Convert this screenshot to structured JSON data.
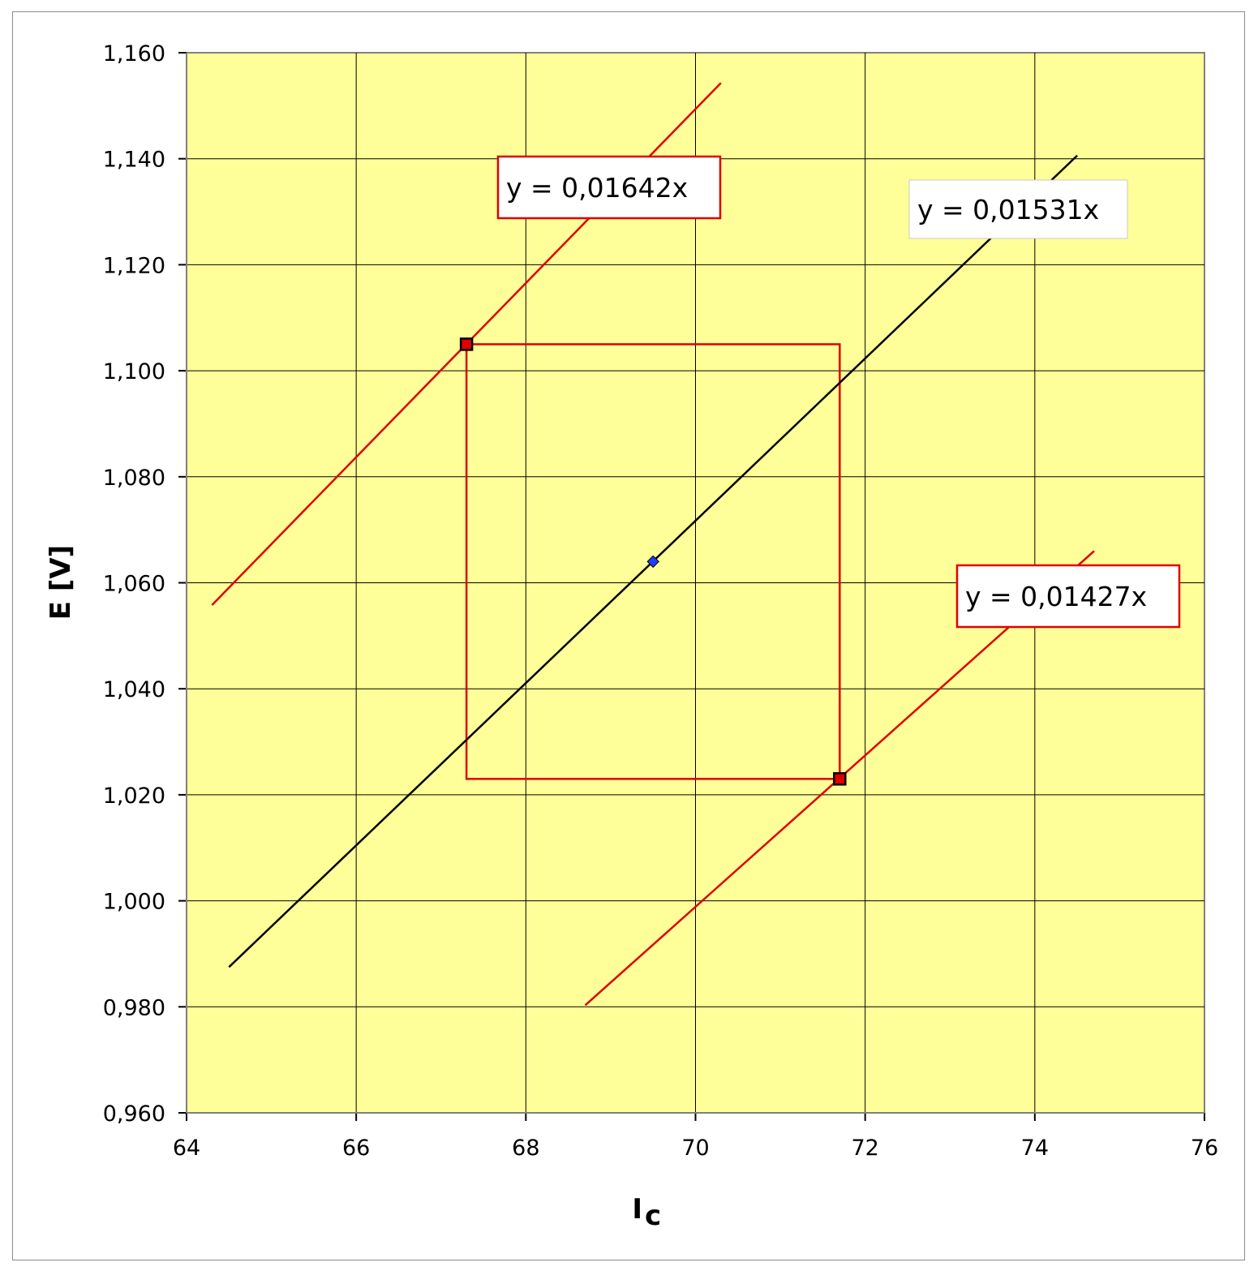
{
  "chart_data": {
    "type": "line",
    "xlabel_main": "I",
    "xlabel_sub": "c",
    "ylabel": "E  [V]",
    "xlim": [
      64,
      76
    ],
    "ylim": [
      0.96,
      1.16
    ],
    "x_ticks": [
      64,
      66,
      68,
      70,
      72,
      74,
      76
    ],
    "x_tick_labels": [
      "64",
      "66",
      "68",
      "70",
      "72",
      "74",
      "76"
    ],
    "y_ticks": [
      0.96,
      0.98,
      1.0,
      1.02,
      1.04,
      1.06,
      1.08,
      1.1,
      1.12,
      1.14,
      1.16
    ],
    "y_tick_labels": [
      "0,960",
      "0,980",
      "1,000",
      "1,020",
      "1,040",
      "1,060",
      "1,080",
      "1,100",
      "1,120",
      "1,140",
      "1,160"
    ],
    "grid": true,
    "colors": {
      "plot_bg": "#ffff99",
      "grid": "#000000",
      "upper_line": "#e00000",
      "center_line": "#000000",
      "lower_line": "#e00000",
      "rectangle": "#e00000",
      "marker_fill": "#e00000",
      "center_point": "#1f3fff"
    },
    "series": [
      {
        "id": "upper",
        "slope": 0.01642,
        "x": [
          64.3,
          70.3
        ],
        "y": [
          1.0558,
          1.1543
        ]
      },
      {
        "id": "center",
        "slope": 0.01531,
        "x": [
          64.5,
          74.5
        ],
        "y": [
          0.9875,
          1.1406
        ]
      },
      {
        "id": "lower",
        "slope": 0.01427,
        "x": [
          68.7,
          74.7
        ],
        "y": [
          0.9803,
          1.066
        ]
      }
    ],
    "rectangle": {
      "x": [
        67.3,
        71.7
      ],
      "y": [
        1.023,
        1.105
      ]
    },
    "corner_points": [
      {
        "x": 67.3,
        "y": 1.105
      },
      {
        "x": 71.7,
        "y": 1.023
      }
    ],
    "center_point": {
      "x": 69.5,
      "y": 1.064
    },
    "annotations": [
      {
        "id": "upper",
        "text": "y = 0,01642x",
        "border": "#e00000"
      },
      {
        "id": "center",
        "text": "y = 0,01531x",
        "border": "#ffffff"
      },
      {
        "id": "lower",
        "text": "y = 0,01427x",
        "border": "#e00000"
      }
    ]
  }
}
